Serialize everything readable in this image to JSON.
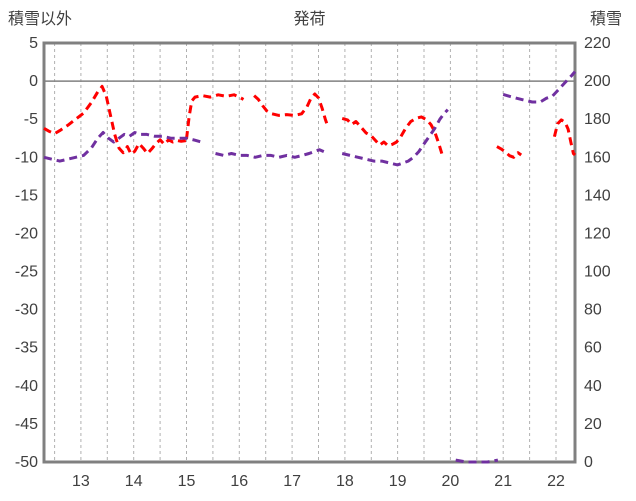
{
  "chart_data": {
    "type": "line",
    "titles": {
      "left": "積雪以外",
      "center": "発荷",
      "right": "積雪"
    },
    "colors": {
      "red_series": "#ff0000",
      "purple_series": "#7030a0",
      "border": "#808080",
      "zero_line": "#808080",
      "gridline": "#b0b0b0",
      "text": "#404040"
    },
    "axes": {
      "left": {
        "min": -50,
        "max": 5,
        "ticks": [
          5,
          0,
          -5,
          -10,
          -15,
          -20,
          -25,
          -30,
          -35,
          -40,
          -45,
          -50
        ]
      },
      "right": {
        "min": 0,
        "max": 220,
        "ticks": [
          220,
          200,
          180,
          160,
          140,
          120,
          100,
          80,
          60,
          40,
          20,
          0
        ]
      },
      "x": {
        "min": 12.3,
        "max": 22.36,
        "ticks": [
          13,
          14,
          15,
          16,
          17,
          18,
          19,
          20,
          21,
          22
        ],
        "gridline_start": 12.5,
        "gridline_step": 0.5,
        "gridline_end": 22.0
      },
      "zero_line_value": 0,
      "grid": "vertical-dashed-only",
      "legend": "none"
    },
    "series": [
      {
        "name": "積雪以外",
        "axis": "left",
        "color": "#ff0000",
        "dash": "8 5",
        "width": 3,
        "segments": [
          [
            [
              12.3,
              -6.2
            ],
            [
              12.4,
              -6.6
            ],
            [
              12.5,
              -6.9
            ],
            [
              12.6,
              -6.5
            ],
            [
              12.75,
              -5.8
            ],
            [
              12.9,
              -5.0
            ],
            [
              13.05,
              -4.2
            ],
            [
              13.2,
              -2.8
            ],
            [
              13.32,
              -1.4
            ],
            [
              13.4,
              -0.7
            ],
            [
              13.48,
              -2.0
            ],
            [
              13.56,
              -4.5
            ],
            [
              13.64,
              -7.0
            ],
            [
              13.72,
              -8.8
            ],
            [
              13.8,
              -9.4
            ],
            [
              13.88,
              -8.6
            ],
            [
              13.95,
              -9.6
            ],
            [
              14.02,
              -9.2
            ],
            [
              14.1,
              -8.2
            ],
            [
              14.18,
              -8.8
            ],
            [
              14.26,
              -9.5
            ],
            [
              14.34,
              -8.9
            ],
            [
              14.42,
              -8.2
            ],
            [
              14.5,
              -7.7
            ],
            [
              14.58,
              -8.3
            ],
            [
              14.66,
              -7.7
            ],
            [
              14.74,
              -8.0
            ],
            [
              14.82,
              -7.8
            ],
            [
              14.9,
              -7.9
            ],
            [
              15.0,
              -7.8
            ]
          ],
          [
            [
              15.0,
              -7.6
            ],
            [
              15.05,
              -4.6
            ],
            [
              15.1,
              -2.6
            ],
            [
              15.16,
              -2.1
            ],
            [
              15.3,
              -1.9
            ],
            [
              15.45,
              -2.1
            ],
            [
              15.6,
              -1.8
            ],
            [
              15.75,
              -2.0
            ],
            [
              15.9,
              -1.8
            ],
            [
              16.0,
              -2.1
            ],
            [
              16.08,
              -2.4
            ]
          ],
          [
            [
              16.28,
              -1.9
            ],
            [
              16.36,
              -2.4
            ],
            [
              16.44,
              -3.2
            ],
            [
              16.52,
              -3.9
            ],
            [
              16.62,
              -4.3
            ],
            [
              16.75,
              -4.5
            ],
            [
              16.9,
              -4.4
            ],
            [
              17.05,
              -4.5
            ],
            [
              17.18,
              -4.3
            ],
            [
              17.28,
              -3.4
            ],
            [
              17.36,
              -2.2
            ],
            [
              17.43,
              -1.7
            ],
            [
              17.5,
              -2.2
            ],
            [
              17.57,
              -3.6
            ],
            [
              17.63,
              -5.0
            ],
            [
              17.66,
              -5.6
            ]
          ],
          [
            [
              17.95,
              -4.9
            ],
            [
              18.05,
              -5.1
            ],
            [
              18.13,
              -5.7
            ],
            [
              18.21,
              -5.3
            ],
            [
              18.3,
              -6.0
            ],
            [
              18.4,
              -6.8
            ],
            [
              18.5,
              -7.2
            ],
            [
              18.58,
              -7.8
            ],
            [
              18.66,
              -8.4
            ],
            [
              18.74,
              -8.0
            ],
            [
              18.82,
              -8.5
            ],
            [
              18.9,
              -8.3
            ],
            [
              18.98,
              -8.0
            ],
            [
              19.06,
              -7.3
            ],
            [
              19.15,
              -6.2
            ],
            [
              19.25,
              -5.3
            ],
            [
              19.35,
              -4.9
            ],
            [
              19.45,
              -4.7
            ],
            [
              19.55,
              -5.1
            ],
            [
              19.63,
              -5.7
            ],
            [
              19.7,
              -6.6
            ],
            [
              19.78,
              -8.2
            ],
            [
              19.84,
              -9.6
            ]
          ],
          [
            [
              20.88,
              -8.6
            ],
            [
              20.96,
              -8.9
            ],
            [
              21.04,
              -9.3
            ],
            [
              21.12,
              -9.8
            ],
            [
              21.2,
              -10.0
            ],
            [
              21.28,
              -9.4
            ],
            [
              21.34,
              -9.7
            ]
          ],
          [
            [
              21.97,
              -7.3
            ],
            [
              22.03,
              -5.6
            ],
            [
              22.1,
              -5.1
            ],
            [
              22.17,
              -5.4
            ],
            [
              22.23,
              -6.3
            ],
            [
              22.28,
              -8.0
            ],
            [
              22.33,
              -9.5
            ],
            [
              22.36,
              -9.7
            ]
          ]
        ]
      },
      {
        "name": "積雪",
        "axis": "right",
        "color": "#7030a0",
        "dash": "8 5",
        "width": 3,
        "segments": [
          [
            [
              12.3,
              160
            ],
            [
              12.45,
              159
            ],
            [
              12.6,
              158
            ],
            [
              12.75,
              159
            ],
            [
              12.9,
              160
            ],
            [
              13.05,
              161
            ],
            [
              13.2,
              165
            ],
            [
              13.32,
              170
            ],
            [
              13.42,
              173
            ],
            [
              13.52,
              170
            ],
            [
              13.62,
              168
            ],
            [
              13.72,
              170
            ],
            [
              13.82,
              172
            ],
            [
              13.92,
              171
            ],
            [
              14.02,
              173
            ],
            [
              14.12,
              172
            ],
            [
              14.25,
              172
            ],
            [
              14.4,
              171
            ],
            [
              14.55,
              171
            ],
            [
              14.7,
              170
            ],
            [
              14.85,
              170
            ],
            [
              15.0,
              170
            ],
            [
              15.15,
              169
            ],
            [
              15.28,
              168
            ]
          ],
          [
            [
              15.55,
              162
            ],
            [
              15.7,
              161
            ],
            [
              15.85,
              162
            ],
            [
              16.0,
              161
            ],
            [
              16.15,
              161
            ],
            [
              16.3,
              160
            ],
            [
              16.45,
              161
            ],
            [
              16.6,
              161
            ],
            [
              16.75,
              160
            ],
            [
              16.9,
              161
            ],
            [
              17.05,
              160
            ],
            [
              17.2,
              161
            ],
            [
              17.32,
              162
            ],
            [
              17.42,
              163
            ],
            [
              17.52,
              164
            ],
            [
              17.6,
              163
            ]
          ],
          [
            [
              17.95,
              162
            ],
            [
              18.1,
              161
            ],
            [
              18.25,
              160
            ],
            [
              18.4,
              159
            ],
            [
              18.55,
              158
            ],
            [
              18.7,
              158
            ],
            [
              18.85,
              157
            ],
            [
              19.0,
              156
            ],
            [
              19.1,
              157
            ],
            [
              19.2,
              158
            ],
            [
              19.3,
              160
            ],
            [
              19.4,
              163
            ],
            [
              19.5,
              167
            ],
            [
              19.6,
              171
            ],
            [
              19.7,
              175
            ],
            [
              19.8,
              180
            ],
            [
              19.88,
              183
            ],
            [
              19.95,
              185
            ]
          ],
          [
            [
              20.1,
              1
            ],
            [
              20.3,
              0
            ],
            [
              20.5,
              0
            ],
            [
              20.7,
              0
            ],
            [
              20.9,
              1
            ]
          ],
          [
            [
              21.0,
              193
            ],
            [
              21.12,
              192
            ],
            [
              21.25,
              191
            ],
            [
              21.4,
              190
            ],
            [
              21.55,
              189
            ],
            [
              21.7,
              189
            ],
            [
              21.82,
              191
            ],
            [
              21.93,
              192
            ],
            [
              22.03,
              195
            ],
            [
              22.13,
              198
            ],
            [
              22.23,
              201
            ],
            [
              22.3,
              203
            ],
            [
              22.36,
              205
            ]
          ]
        ]
      }
    ]
  }
}
